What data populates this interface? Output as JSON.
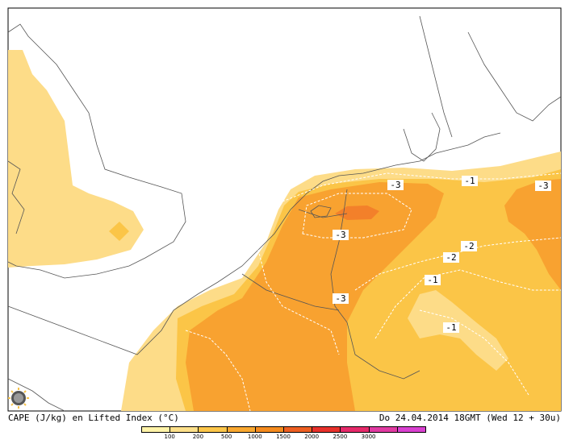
{
  "caption": {
    "left": "CAPE (J/kg) en Lifted Index (°C)",
    "right": "Do 24.04.2014 18GMT (Wed 12 + 30u)"
  },
  "legend": {
    "colors": [
      "#fff3a8",
      "#fde08a",
      "#fcc64a",
      "#f9a830",
      "#f58b1e",
      "#ee5f22",
      "#e8312b",
      "#e62a6a",
      "#e13ba2",
      "#d940d0"
    ],
    "ticks": [
      "100",
      "200",
      "500",
      "1000",
      "1500",
      "2000",
      "2500",
      "3000"
    ]
  },
  "contour_labels": [
    {
      "text": "-3"
    },
    {
      "text": "-1"
    },
    {
      "text": "-3"
    },
    {
      "text": "-3"
    },
    {
      "text": "-2"
    },
    {
      "text": "-2"
    },
    {
      "text": "-1"
    },
    {
      "text": "-3"
    },
    {
      "text": "-1"
    }
  ],
  "map": {
    "shading_colors": {
      "light": "#fddc88",
      "medium": "#fbc547",
      "dark": "#f8a230",
      "peak": "#f3802a"
    },
    "coastline_color": "#555555",
    "contour_color": "#ffffff"
  }
}
